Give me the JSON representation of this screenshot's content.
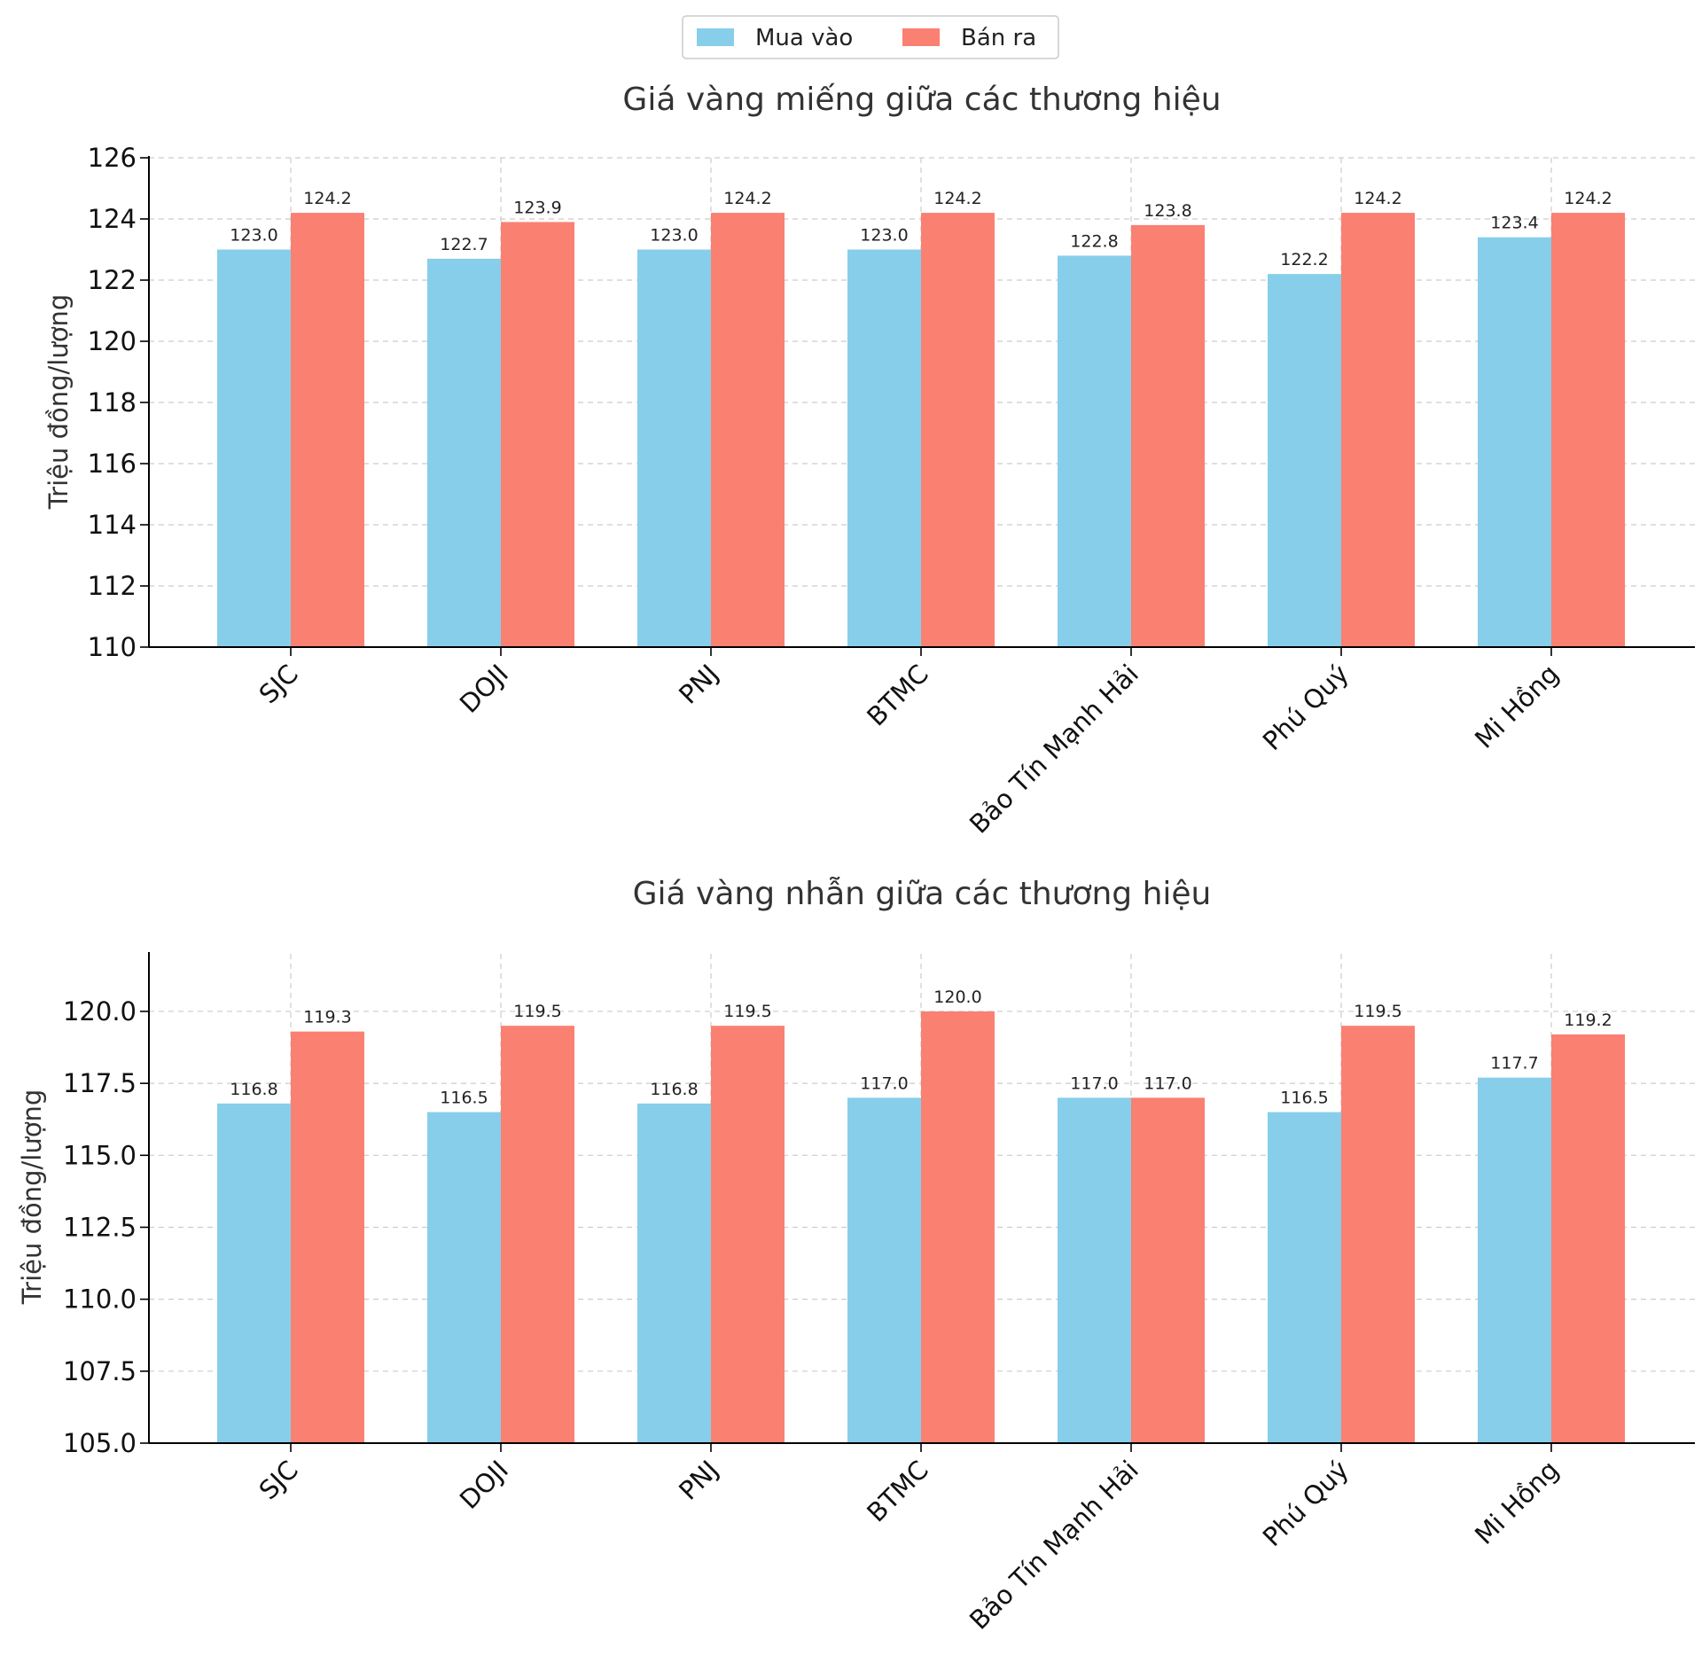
{
  "legend": {
    "position": "top-center",
    "entries": [
      {
        "label": "Mua vào",
        "color": "#87CEEB"
      },
      {
        "label": "Bán ra",
        "color": "#FA8072"
      }
    ]
  },
  "chart_data": [
    {
      "type": "bar",
      "title": "Giá vàng miếng giữa các thương hiệu",
      "xlabel": "",
      "ylabel": "Triệu đồng/lượng",
      "ylim": [
        110,
        126
      ],
      "yticks": [
        110,
        112,
        114,
        116,
        118,
        120,
        122,
        124,
        126
      ],
      "ytick_labels": [
        "110",
        "112",
        "114",
        "116",
        "118",
        "120",
        "122",
        "124",
        "126"
      ],
      "grid": true,
      "categories": [
        "SJC",
        "DOJI",
        "PNJ",
        "BTMC",
        "Bảo Tín Mạnh Hải",
        "Phú Quý",
        "Mi Hồng"
      ],
      "series": [
        {
          "name": "Mua vào",
          "color": "#87CEEB",
          "values": [
            123.0,
            122.7,
            123.0,
            123.0,
            122.8,
            122.2,
            123.4
          ],
          "labels": [
            "123.0",
            "122.7",
            "123.0",
            "123.0",
            "122.8",
            "122.2",
            "123.4"
          ]
        },
        {
          "name": "Bán ra",
          "color": "#FA8072",
          "values": [
            124.2,
            123.9,
            124.2,
            124.2,
            123.8,
            124.2,
            124.2
          ],
          "labels": [
            "124.2",
            "123.9",
            "124.2",
            "124.2",
            "123.8",
            "124.2",
            "124.2"
          ]
        }
      ]
    },
    {
      "type": "bar",
      "title": "Giá vàng nhẫn giữa các thương hiệu",
      "xlabel": "",
      "ylabel": "Triệu đồng/lượng",
      "ylim": [
        105,
        122
      ],
      "yticks": [
        105,
        107.5,
        110,
        112.5,
        115,
        117.5,
        120
      ],
      "ytick_labels": [
        "105.0",
        "107.5",
        "110.0",
        "112.5",
        "115.0",
        "117.5",
        "120.0"
      ],
      "grid": true,
      "categories": [
        "SJC",
        "DOJI",
        "PNJ",
        "BTMC",
        "Bảo Tín Mạnh Hải",
        "Phú Quý",
        "Mi Hồng"
      ],
      "series": [
        {
          "name": "Mua vào",
          "color": "#87CEEB",
          "values": [
            116.8,
            116.5,
            116.8,
            117.0,
            117.0,
            116.5,
            117.7
          ],
          "labels": [
            "116.8",
            "116.5",
            "116.8",
            "117.0",
            "117.0",
            "116.5",
            "117.7"
          ]
        },
        {
          "name": "Bán ra",
          "color": "#FA8072",
          "values": [
            119.3,
            119.5,
            119.5,
            120.0,
            117.0,
            119.5,
            119.2
          ],
          "labels": [
            "119.3",
            "119.5",
            "119.5",
            "120.0",
            "117.0",
            "119.5",
            "119.2"
          ]
        }
      ]
    }
  ]
}
